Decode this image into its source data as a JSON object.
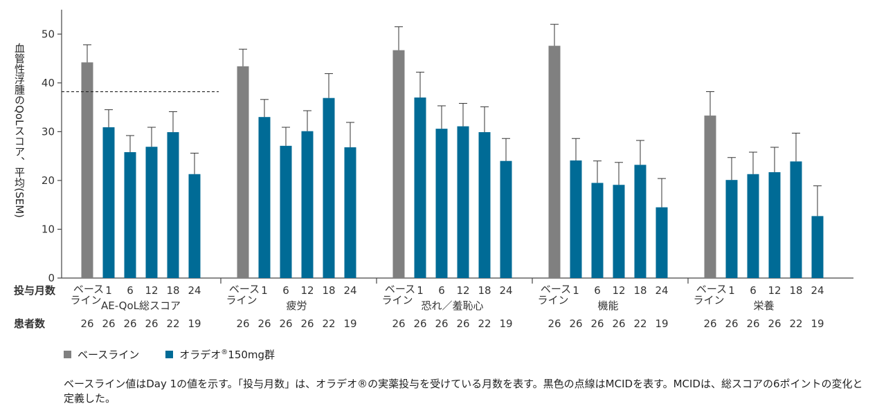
{
  "chart_data": {
    "type": "bar",
    "ylabel": "血管性浮腫のQoLスコア、平均(SEM)",
    "ylim": [
      0,
      55
    ],
    "yticks": [
      0,
      10,
      20,
      30,
      40,
      50
    ],
    "x_row_label": "投与月数",
    "n_row_label": "患者数",
    "reference_line": {
      "value": 38.2,
      "style": "dashed"
    },
    "time_labels": [
      "ベース\nライン",
      "1",
      "6",
      "12",
      "18",
      "24"
    ],
    "groups": [
      {
        "name": "AE-QoL総スコア",
        "values": [
          44.2,
          30.9,
          25.8,
          26.9,
          29.9,
          21.3
        ],
        "errors": [
          3.6,
          3.6,
          3.4,
          4.0,
          4.2,
          4.3
        ],
        "n": [
          "26",
          "26",
          "26",
          "26",
          "22",
          "19"
        ]
      },
      {
        "name": "疲労",
        "values": [
          43.4,
          33.0,
          27.1,
          30.1,
          36.9,
          26.8
        ],
        "errors": [
          3.5,
          3.6,
          3.8,
          4.2,
          5.0,
          5.1
        ],
        "n": [
          "26",
          "26",
          "26",
          "26",
          "22",
          "19"
        ]
      },
      {
        "name": "恐れ／羞恥心",
        "values": [
          46.7,
          37.0,
          30.6,
          31.1,
          29.9,
          24.0
        ],
        "errors": [
          4.8,
          5.2,
          4.7,
          4.7,
          5.2,
          4.6
        ],
        "n": [
          "26",
          "26",
          "26",
          "26",
          "22",
          "19"
        ]
      },
      {
        "name": "機能",
        "values": [
          47.6,
          24.1,
          19.5,
          19.1,
          23.2,
          14.5
        ],
        "errors": [
          4.4,
          4.5,
          4.5,
          4.6,
          5.0,
          5.9
        ],
        "n": [
          "26",
          "26",
          "26",
          "26",
          "22",
          "19"
        ]
      },
      {
        "name": "栄養",
        "values": [
          33.3,
          20.1,
          21.3,
          21.7,
          23.9,
          12.7
        ],
        "errors": [
          4.9,
          4.6,
          4.5,
          5.1,
          5.8,
          6.2
        ],
        "n": [
          "26",
          "26",
          "26",
          "26",
          "22",
          "19"
        ]
      }
    ],
    "series": [
      {
        "name": "ベースライン",
        "color": "#808080"
      },
      {
        "name": "オラデオ®150mg群",
        "color": "#006b96"
      }
    ]
  },
  "legend": {
    "baseline": "ベースライン",
    "treatment_prefix": "オラデオ",
    "treatment_reg": "®",
    "treatment_suffix": "150mg群"
  },
  "footnote": {
    "line1": "ベースライン値はDay 1の値を示す。「投与月数」は、オラデオ®の実薬投与を受けている月数を表す。黒色の点線はMCIDを表す。MCIDは、総スコアの6ポイントの変化と",
    "line2": "定義した。"
  },
  "colors": {
    "baseline": "#808080",
    "treatment": "#006b96",
    "axis": "#444444"
  }
}
